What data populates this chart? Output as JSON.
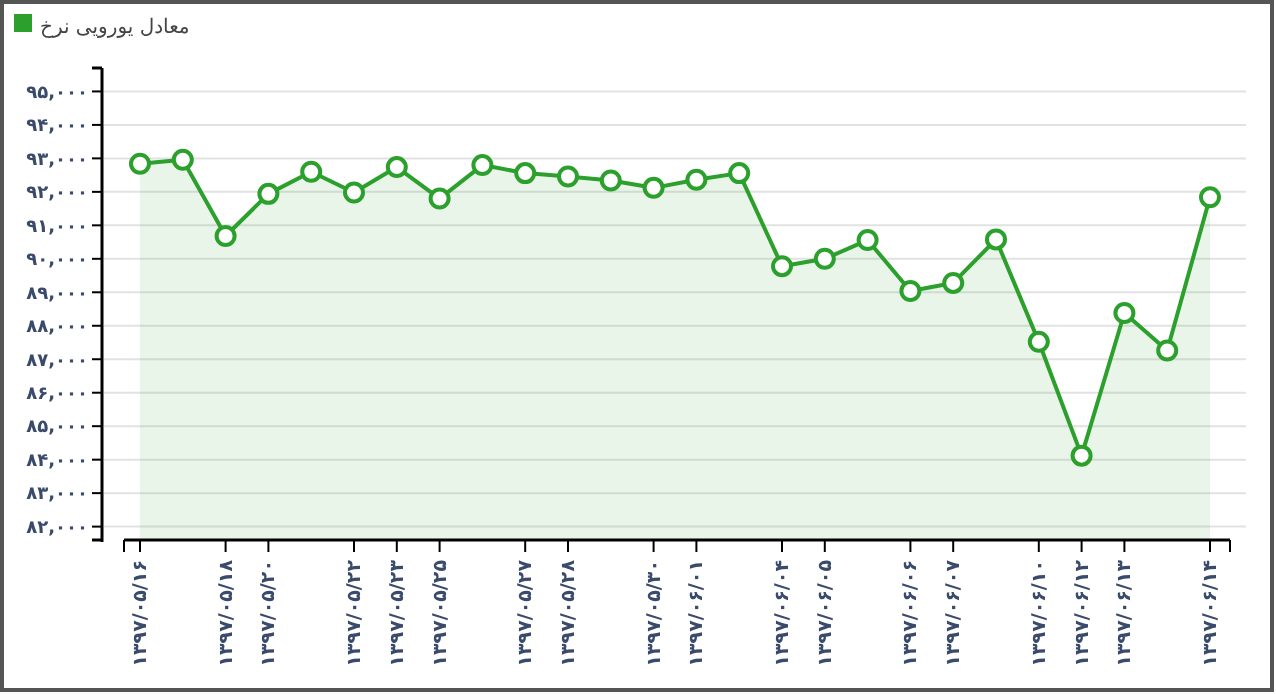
{
  "chart_data": {
    "type": "area",
    "categories": [
      "۱۳۹۷/۰۵/۱۶",
      null,
      "۱۳۹۷/۰۵/۱۸",
      "۱۳۹۷/۰۵/۲۰",
      null,
      "۱۳۹۷/۰۵/۲۲",
      "۱۳۹۷/۰۵/۲۳",
      "۱۳۹۷/۰۵/۲۵",
      null,
      "۱۳۹۷/۰۵/۲۷",
      "۱۳۹۷/۰۵/۲۸",
      null,
      "۱۳۹۷/۰۵/۳۰",
      "۱۳۹۷/۰۶/۰۱",
      null,
      "۱۳۹۷/۰۶/۰۴",
      "۱۳۹۷/۰۶/۰۵",
      null,
      "۱۳۹۷/۰۶/۰۶",
      "۱۳۹۷/۰۶/۰۷",
      null,
      "۱۳۹۷/۰۶/۱۰",
      "۱۳۹۷/۰۶/۱۲",
      "۱۳۹۷/۰۶/۱۳",
      null,
      "۱۳۹۷/۰۶/۱۴"
    ],
    "series": [
      {
        "name": "معادل یورویی نرخ",
        "color": "#2ca02c",
        "values": [
          92840,
          92960,
          90680,
          91940,
          92600,
          91980,
          92740,
          91800,
          92800,
          92560,
          92460,
          92340,
          92120,
          92360,
          92560,
          89780,
          90000,
          90560,
          89040,
          89280,
          90580,
          87520,
          84120,
          88380,
          87260,
          91840
        ]
      }
    ],
    "ylim": [
      81600,
      95700
    ],
    "yticks": [
      {
        "value": 82000,
        "label": "۸۲,۰۰۰"
      },
      {
        "value": 83000,
        "label": "۸۳,۰۰۰"
      },
      {
        "value": 84000,
        "label": "۸۴,۰۰۰"
      },
      {
        "value": 85000,
        "label": "۸۵,۰۰۰"
      },
      {
        "value": 86000,
        "label": "۸۶,۰۰۰"
      },
      {
        "value": 87000,
        "label": "۸۷,۰۰۰"
      },
      {
        "value": 88000,
        "label": "۸۸,۰۰۰"
      },
      {
        "value": 89000,
        "label": "۸۹,۰۰۰"
      },
      {
        "value": 90000,
        "label": "۹۰,۰۰۰"
      },
      {
        "value": 91000,
        "label": "۹۱,۰۰۰"
      },
      {
        "value": 92000,
        "label": "۹۲,۰۰۰"
      },
      {
        "value": 93000,
        "label": "۹۳,۰۰۰"
      },
      {
        "value": 94000,
        "label": "۹۴,۰۰۰"
      },
      {
        "value": 95000,
        "label": "۹۵,۰۰۰"
      }
    ],
    "grid": "y",
    "legend": "top left",
    "marker": "circle"
  }
}
